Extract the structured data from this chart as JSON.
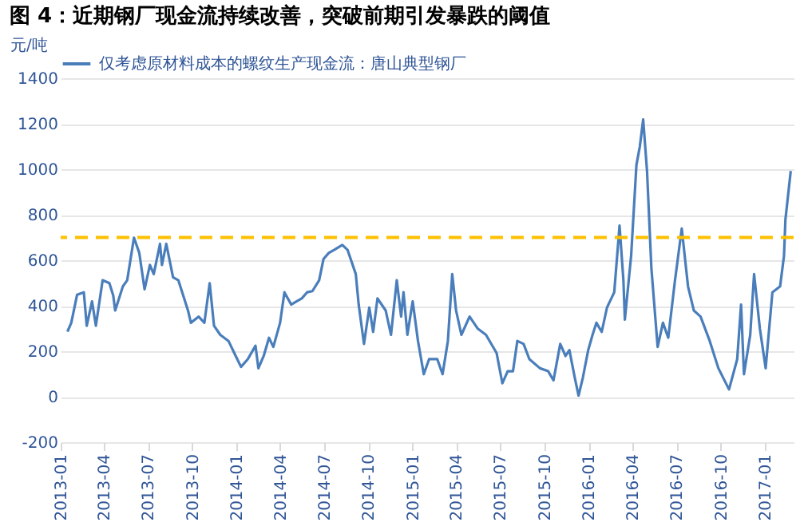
{
  "chart_data": {
    "type": "line",
    "title": "图 4：近期钢厂现金流持续改善，突破前期引发暴跌的阈值",
    "ylabel": "元/吨",
    "xlim": [
      "2013-01",
      "2017-03"
    ],
    "xticks": [
      "2013-01",
      "2013-04",
      "2013-07",
      "2013-10",
      "2014-01",
      "2014-04",
      "2014-07",
      "2014-10",
      "2015-01",
      "2015-04",
      "2015-07",
      "2015-10",
      "2016-01",
      "2016-04",
      "2016-07",
      "2016-10",
      "2017-01"
    ],
    "ylim": [
      -200,
      1400
    ],
    "yticks": [
      -200,
      0,
      200,
      400,
      600,
      800,
      1000,
      1200,
      1400
    ],
    "grid": "y",
    "legend": "top",
    "line_style": "solid",
    "marker": "none",
    "ref_lines": [
      {
        "axis": "y",
        "value": 700,
        "color": "#ffc000",
        "line_style": "dashed"
      }
    ],
    "series": [
      {
        "name": "仅考虑原材料成本的螺纹生产现金流：唐山典型钢厂",
        "color": "#4a7ebb",
        "x": [
          "2013-01-15",
          "2013-01-23",
          "2013-02-04",
          "2013-02-18",
          "2013-02-24",
          "2013-03-07",
          "2013-03-15",
          "2013-03-29",
          "2013-04-12",
          "2013-04-20",
          "2013-04-24",
          "2013-05-10",
          "2013-05-19",
          "2013-06-02",
          "2013-06-13",
          "2013-06-24",
          "2013-07-05",
          "2013-07-13",
          "2013-07-26",
          "2013-07-30",
          "2013-08-08",
          "2013-08-22",
          "2013-09-02",
          "2013-09-22",
          "2013-09-28",
          "2013-10-14",
          "2013-10-26",
          "2013-11-06",
          "2013-11-15",
          "2013-11-28",
          "2013-12-15",
          "2013-12-30",
          "2014-01-10",
          "2014-01-24",
          "2014-02-09",
          "2014-02-15",
          "2014-02-26",
          "2014-03-09",
          "2014-03-18",
          "2014-04-01",
          "2014-04-10",
          "2014-04-24",
          "2014-05-05",
          "2014-05-16",
          "2014-05-27",
          "2014-06-07",
          "2014-06-21",
          "2014-06-30",
          "2014-07-11",
          "2014-07-22",
          "2014-08-08",
          "2014-08-19",
          "2014-09-05",
          "2014-09-11",
          "2014-09-22",
          "2014-10-03",
          "2014-10-11",
          "2014-10-20",
          "2014-11-06",
          "2014-11-17",
          "2014-11-29",
          "2014-12-08",
          "2014-12-13",
          "2014-12-21",
          "2015-01-01",
          "2015-01-12",
          "2015-01-24",
          "2015-02-04",
          "2015-02-21",
          "2015-03-04",
          "2015-03-15",
          "2015-03-24",
          "2015-04-01",
          "2015-04-12",
          "2015-04-29",
          "2015-05-16",
          "2015-06-02",
          "2015-06-24",
          "2015-07-06",
          "2015-07-17",
          "2015-07-28",
          "2015-08-06",
          "2015-08-19",
          "2015-08-31",
          "2015-09-22",
          "2015-10-09",
          "2015-10-20",
          "2015-11-03",
          "2015-11-14",
          "2015-11-22",
          "2015-12-03",
          "2015-12-11",
          "2015-12-20",
          "2015-12-31",
          "2016-01-09",
          "2016-01-17",
          "2016-01-28",
          "2016-02-08",
          "2016-02-23",
          "2016-03-05",
          "2016-03-13",
          "2016-03-16",
          "2016-03-29",
          "2016-04-09",
          "2016-04-16",
          "2016-04-23",
          "2016-05-01",
          "2016-05-10",
          "2016-05-23",
          "2016-06-03",
          "2016-06-14",
          "2016-06-28",
          "2016-07-12",
          "2016-07-25",
          "2016-08-06",
          "2016-08-20",
          "2016-09-08",
          "2016-09-26",
          "2016-10-18",
          "2016-11-04",
          "2016-11-12",
          "2016-11-18",
          "2016-12-01",
          "2016-12-09",
          "2016-12-21",
          "2017-01-02",
          "2017-01-16",
          "2017-02-01",
          "2017-02-09",
          "2017-02-12",
          "2017-02-23"
        ],
        "values": [
          286,
          325,
          448,
          459,
          312,
          419,
          312,
          512,
          499,
          445,
          379,
          485,
          512,
          699,
          632,
          472,
          579,
          539,
          672,
          579,
          672,
          525,
          512,
          379,
          325,
          352,
          325,
          499,
          312,
          272,
          245,
          179,
          131,
          165,
          224,
          125,
          179,
          259,
          219,
          325,
          459,
          405,
          419,
          432,
          459,
          464,
          512,
          605,
          632,
          645,
          667,
          645,
          539,
          405,
          232,
          392,
          285,
          432,
          379,
          272,
          512,
          352,
          459,
          272,
          419,
          245,
          99,
          165,
          165,
          99,
          245,
          539,
          379,
          272,
          352,
          299,
          272,
          192,
          59,
          112,
          112,
          245,
          232,
          165,
          125,
          112,
          72,
          232,
          179,
          205,
          85,
          5,
          85,
          205,
          272,
          325,
          285,
          392,
          459,
          752,
          512,
          339,
          619,
          1019,
          1099,
          1219,
          992,
          565,
          219,
          325,
          259,
          512,
          739,
          485,
          379,
          352,
          245,
          125,
          32,
          165,
          405,
          99,
          272,
          539,
          299,
          125,
          459,
          485,
          619,
          779,
          992
        ]
      }
    ]
  }
}
